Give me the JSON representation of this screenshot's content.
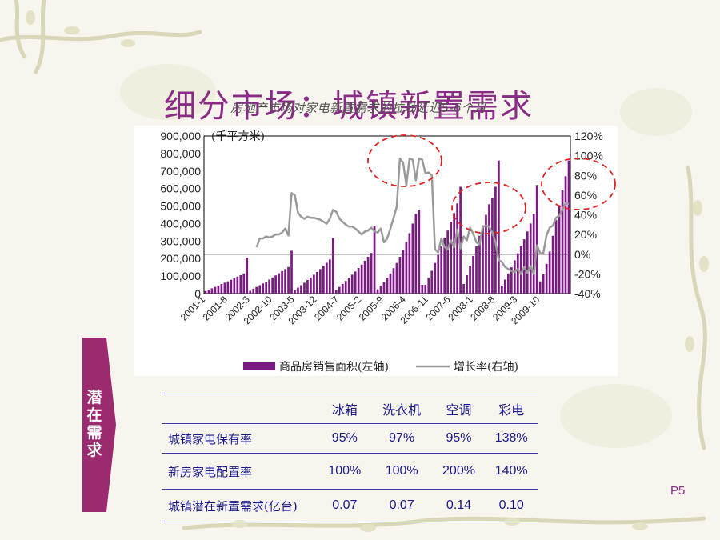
{
  "slide": {
    "title": "细分市场：城镇新置需求",
    "overlay_caption": "房地产市场对家电新置需求的拉动延迟5-6个月",
    "page_number": "P5",
    "accent_color": "#8a2b86",
    "table_text_color": "#1a1a8c"
  },
  "chart_data": {
    "type": "bar+line",
    "unit_label": "(千平方米)",
    "x_tick_labels": [
      "2001-1",
      "2001-8",
      "2002-3",
      "2002-10",
      "2003-5",
      "2003-12",
      "2004-7",
      "2005-2",
      "2005-9",
      "2006-4",
      "2006-11",
      "2007-6",
      "2008-1",
      "2008-8",
      "2009-3",
      "2009-10"
    ],
    "left_axis": {
      "ticks": [
        "900,000",
        "800,000",
        "700,000",
        "600,000",
        "500,000",
        "400,000",
        "300,000",
        "200,000",
        "100,000",
        "0"
      ],
      "ylim": [
        0,
        900000
      ]
    },
    "right_axis": {
      "ticks": [
        "120%",
        "100%",
        "80%",
        "60%",
        "40%",
        "20%",
        "0%",
        "-20%",
        "-40%"
      ],
      "ylim": [
        -40,
        120
      ]
    },
    "series": [
      {
        "name": "商品房销售面积(左轴)",
        "kind": "bar",
        "color": "#7b1a82",
        "values": [
          15000,
          22000,
          30000,
          38000,
          46000,
          55000,
          62000,
          70000,
          79000,
          88000,
          97000,
          105000,
          115000,
          205000,
          16000,
          28000,
          38000,
          48000,
          58000,
          68000,
          80000,
          92000,
          104000,
          116000,
          128000,
          140000,
          152000,
          245000,
          18000,
          34000,
          48000,
          62000,
          78000,
          92000,
          108000,
          124000,
          140000,
          158000,
          176000,
          195000,
          318000,
          20000,
          38000,
          55000,
          72000,
          90000,
          108000,
          126000,
          146000,
          166000,
          188000,
          210000,
          232000,
          385000,
          24000,
          45000,
          65000,
          90000,
          115000,
          145000,
          175000,
          210000,
          250000,
          295000,
          345000,
          400000,
          455000,
          480000,
          50000,
          50000,
          90000,
          130000,
          175000,
          220000,
          270000,
          320000,
          360000,
          410000,
          460000,
          515000,
          610000,
          55000,
          105000,
          160000,
          215000,
          270000,
          330000,
          390000,
          450000,
          510000,
          545000,
          610000,
          760000,
          45000,
          80000,
          115000,
          150000,
          190000,
          230000,
          270000,
          310000,
          355000,
          400000,
          455000,
          620000,
          70000,
          110000,
          170000,
          240000,
          330000,
          420000,
          500000,
          590000,
          670000,
          760000
        ]
      },
      {
        "name": "增长率(右轴)",
        "kind": "line",
        "color": "#9a9a9a",
        "values": [
          null,
          null,
          null,
          null,
          null,
          null,
          null,
          null,
          null,
          null,
          null,
          null,
          null,
          null,
          null,
          null,
          7,
          16,
          16,
          18,
          17,
          18,
          20,
          20,
          22,
          26,
          19,
          62,
          60,
          42,
          38,
          36,
          38,
          37,
          37,
          36,
          35,
          33,
          31,
          36,
          45,
          43,
          36,
          33,
          30,
          28,
          28,
          26,
          23,
          20,
          23,
          24,
          27,
          23,
          22,
          26,
          12,
          16,
          26,
          37,
          48,
          97,
          93,
          70,
          97,
          96,
          75,
          97,
          96,
          82,
          83,
          80,
          5,
          2,
          16,
          7,
          5,
          14,
          7,
          25,
          6,
          18,
          14,
          27,
          21,
          12,
          10,
          28,
          29,
          28,
          22,
          12,
          -6,
          -8,
          -13,
          -15,
          -17,
          -18,
          -15,
          -20,
          -13,
          -19,
          -12,
          -20,
          9,
          1,
          1,
          19,
          27,
          29,
          37,
          39,
          45,
          52,
          51
        ]
      }
    ],
    "annotations": [
      "dashed red circles highlighting peaks around 2005-9 to 2006-4, 2008-1 to 2008-8, and 2009-10 onward"
    ]
  },
  "side_label": {
    "text": "潜在需求",
    "color": "#9b2a6e"
  },
  "table": {
    "columns": [
      "冰箱",
      "洗衣机",
      "空调",
      "彩电"
    ],
    "rows": [
      {
        "label": "城镇家电保有率",
        "values": [
          "95%",
          "97%",
          "95%",
          "138%"
        ]
      },
      {
        "label": "新房家电配置率",
        "values": [
          "100%",
          "100%",
          "200%",
          "140%"
        ]
      },
      {
        "label": "城镇潜在新置需求(亿台)",
        "values": [
          "0.07",
          "0.07",
          "0.14",
          "0.10"
        ]
      }
    ]
  }
}
